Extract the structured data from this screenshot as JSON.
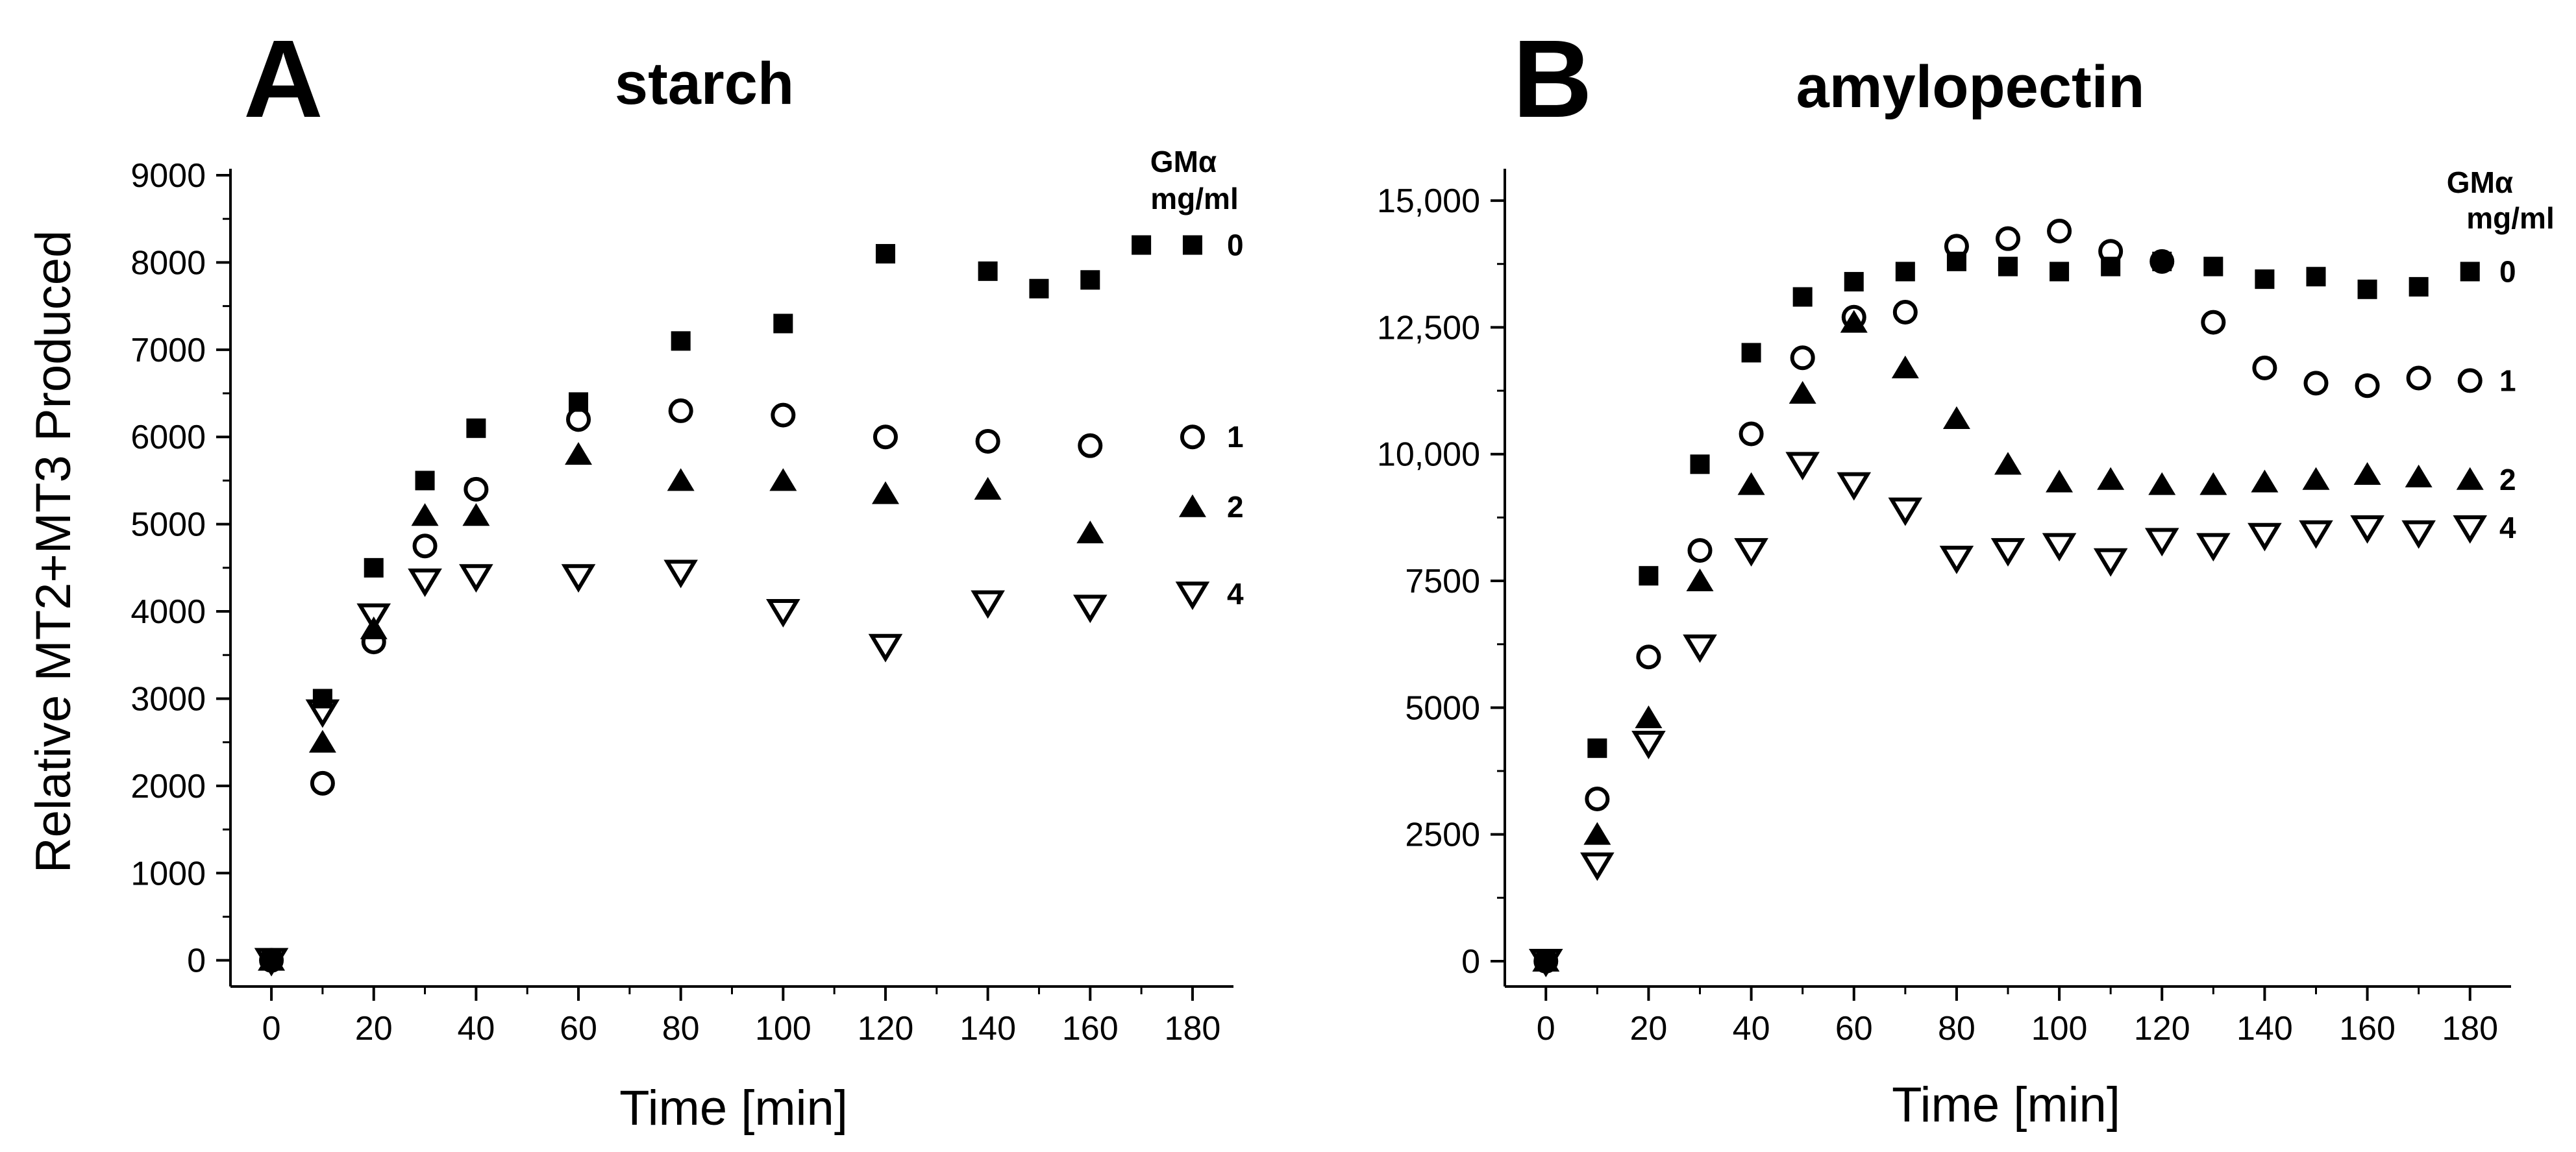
{
  "chart_data": [
    {
      "type": "scatter",
      "panel_label": "A",
      "title": "starch",
      "xlabel": "Time [min]",
      "ylabel": "Relative MT2+MT3 Produced",
      "xlim": [
        -8,
        188
      ],
      "ylim": [
        -300,
        9000
      ],
      "x_ticks": [
        "0",
        "20",
        "40",
        "60",
        "80",
        "100",
        "120",
        "140",
        "160",
        "180"
      ],
      "y_ticks": [
        "0",
        "1000",
        "2000",
        "3000",
        "4000",
        "5000",
        "6000",
        "7000",
        "8000",
        "9000"
      ],
      "legend": {
        "title_line1": "GMα",
        "title_line2": "mg/ml",
        "placement": "right"
      },
      "series": [
        {
          "label": "0",
          "marker": "square-filled",
          "points": [
            [
              0,
              0
            ],
            [
              10,
              3000
            ],
            [
              20,
              4500
            ],
            [
              30,
              5500
            ],
            [
              40,
              6100
            ],
            [
              60,
              6400
            ],
            [
              80,
              7100
            ],
            [
              100,
              7300
            ],
            [
              120,
              8100
            ],
            [
              140,
              7900
            ],
            [
              150,
              7700
            ],
            [
              160,
              7800
            ],
            [
              170,
              8200
            ],
            [
              180,
              8200
            ]
          ]
        },
        {
          "label": "1",
          "marker": "circle-open",
          "points": [
            [
              0,
              0
            ],
            [
              10,
              2030
            ],
            [
              20,
              3650
            ],
            [
              30,
              4750
            ],
            [
              40,
              5400
            ],
            [
              60,
              6200
            ],
            [
              80,
              6300
            ],
            [
              100,
              6250
            ],
            [
              120,
              6000
            ],
            [
              140,
              5950
            ],
            [
              160,
              5900
            ],
            [
              180,
              6000
            ]
          ]
        },
        {
          "label": "2",
          "marker": "triangle-up-filled",
          "points": [
            [
              0,
              0
            ],
            [
              10,
              2500
            ],
            [
              20,
              3800
            ],
            [
              30,
              5100
            ],
            [
              40,
              5100
            ],
            [
              60,
              5800
            ],
            [
              80,
              5500
            ],
            [
              100,
              5500
            ],
            [
              120,
              5350
            ],
            [
              140,
              5400
            ],
            [
              160,
              4900
            ],
            [
              180,
              5200
            ]
          ]
        },
        {
          "label": "4",
          "marker": "triangle-down-open",
          "points": [
            [
              0,
              0
            ],
            [
              10,
              2850
            ],
            [
              20,
              3950
            ],
            [
              30,
              4350
            ],
            [
              40,
              4400
            ],
            [
              60,
              4400
            ],
            [
              80,
              4450
            ],
            [
              100,
              4000
            ],
            [
              120,
              3600
            ],
            [
              140,
              4100
            ],
            [
              160,
              4050
            ],
            [
              180,
              4200
            ]
          ]
        }
      ]
    },
    {
      "type": "scatter",
      "panel_label": "B",
      "title": "amylopectin",
      "xlabel": "Time [min]",
      "ylabel": "",
      "xlim": [
        -8,
        188
      ],
      "ylim": [
        -500,
        15500
      ],
      "x_ticks": [
        "0",
        "20",
        "40",
        "60",
        "80",
        "100",
        "120",
        "140",
        "160",
        "180"
      ],
      "y_ticks": [
        "0",
        "2500",
        "5000",
        "7500",
        "10,000",
        "12,500",
        "15,000"
      ],
      "legend": {
        "title_line1": "GMα",
        "title_line2": "mg/ml",
        "placement": "right"
      },
      "series": [
        {
          "label": "0",
          "marker": "square-filled",
          "points": [
            [
              0,
              0
            ],
            [
              10,
              4200
            ],
            [
              20,
              7600
            ],
            [
              30,
              9800
            ],
            [
              40,
              12000
            ],
            [
              50,
              13100
            ],
            [
              60,
              13400
            ],
            [
              70,
              13600
            ],
            [
              80,
              13800
            ],
            [
              90,
              13700
            ],
            [
              100,
              13600
            ],
            [
              110,
              13700
            ],
            [
              120,
              13800
            ],
            [
              130,
              13700
            ],
            [
              140,
              13450
            ],
            [
              150,
              13500
            ],
            [
              160,
              13250
            ],
            [
              170,
              13300
            ],
            [
              180,
              13600
            ]
          ]
        },
        {
          "label": "1",
          "marker": "circle-open",
          "points": [
            [
              0,
              0
            ],
            [
              10,
              3200
            ],
            [
              20,
              6000
            ],
            [
              30,
              8100
            ],
            [
              40,
              10400
            ],
            [
              50,
              11900
            ],
            [
              60,
              12700
            ],
            [
              70,
              12800
            ],
            [
              80,
              14100
            ],
            [
              90,
              14250
            ],
            [
              100,
              14400
            ],
            [
              110,
              14000
            ],
            [
              120,
              13800
            ],
            [
              130,
              12600
            ],
            [
              140,
              11700
            ],
            [
              150,
              11400
            ],
            [
              160,
              11350
            ],
            [
              170,
              11500
            ],
            [
              180,
              11450
            ]
          ]
        },
        {
          "label": "2",
          "marker": "triangle-up-filled",
          "points": [
            [
              0,
              0
            ],
            [
              10,
              2500
            ],
            [
              20,
              4800
            ],
            [
              30,
              7500
            ],
            [
              40,
              9400
            ],
            [
              50,
              11200
            ],
            [
              60,
              12600
            ],
            [
              70,
              11700
            ],
            [
              80,
              10700
            ],
            [
              90,
              9800
            ],
            [
              100,
              9450
            ],
            [
              110,
              9500
            ],
            [
              120,
              9400
            ],
            [
              130,
              9400
            ],
            [
              140,
              9450
            ],
            [
              150,
              9500
            ],
            [
              160,
              9600
            ],
            [
              170,
              9550
            ],
            [
              180,
              9500
            ]
          ]
        },
        {
          "label": "4",
          "marker": "triangle-down-open",
          "points": [
            [
              0,
              0
            ],
            [
              10,
              1900
            ],
            [
              20,
              4300
            ],
            [
              30,
              6200
            ],
            [
              40,
              8100
            ],
            [
              50,
              9800
            ],
            [
              60,
              9400
            ],
            [
              70,
              8900
            ],
            [
              80,
              7950
            ],
            [
              90,
              8100
            ],
            [
              100,
              8200
            ],
            [
              110,
              7900
            ],
            [
              120,
              8300
            ],
            [
              130,
              8200
            ],
            [
              140,
              8400
            ],
            [
              150,
              8450
            ],
            [
              160,
              8550
            ],
            [
              170,
              8450
            ],
            [
              180,
              8550
            ]
          ]
        }
      ]
    }
  ]
}
